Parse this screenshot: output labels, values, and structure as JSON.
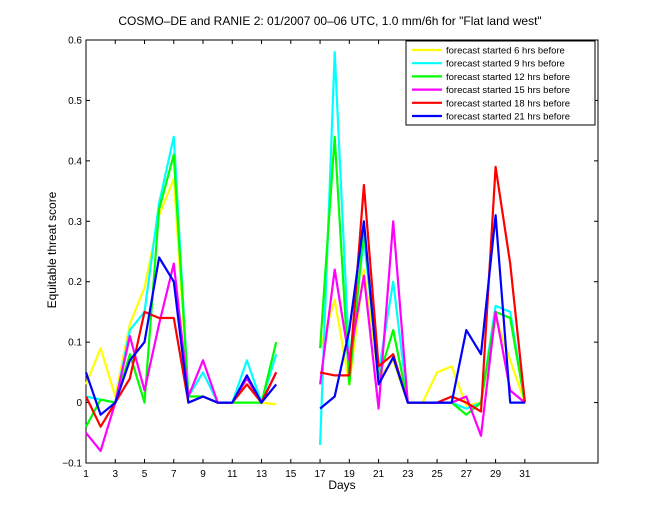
{
  "chart_data": {
    "type": "line",
    "title": "COSMO–DE and RANIE 2: 01/2007 00–06 UTC, 1.0 mm/6h for \"Flat land west\"",
    "xlabel": "Days",
    "ylabel": "Equitable threat score",
    "xlim": [
      1,
      36
    ],
    "ylim": [
      -0.1,
      0.6
    ],
    "xticks": [
      1,
      3,
      5,
      7,
      9,
      11,
      13,
      15,
      17,
      19,
      21,
      23,
      25,
      27,
      29,
      31
    ],
    "yticks": [
      -0.1,
      0,
      0.1,
      0.2,
      0.3,
      0.4,
      0.5,
      0.6
    ],
    "xtick_labels": [
      "1",
      "3",
      "5",
      "7",
      "9",
      "11",
      "13",
      "15",
      "17",
      "19",
      "21",
      "23",
      "25",
      "27",
      "29",
      "31"
    ],
    "ytick_labels": [
      "−0.1",
      "0",
      "0.1",
      "0.2",
      "0.3",
      "0.4",
      "0.5",
      "0.6"
    ],
    "legend_position": "top-right",
    "series": [
      {
        "name": "forecast started 6 hrs before",
        "color": "#ffff00",
        "x": [
          1,
          2,
          3,
          4,
          5,
          6,
          7,
          8,
          9,
          10,
          11,
          12,
          13,
          14,
          null,
          17,
          18,
          19,
          20,
          21,
          22,
          23,
          24,
          25,
          26,
          27,
          28,
          29,
          30,
          31
        ],
        "y": [
          0.03,
          0.09,
          0.01,
          0.13,
          0.19,
          0.31,
          0.37,
          0.01,
          0.01,
          0.0,
          0.0,
          0.03,
          0.0,
          -0.003,
          null,
          0.09,
          0.17,
          0.03,
          0.22,
          0.04,
          0.07,
          0.0,
          0.0,
          0.05,
          0.06,
          -0.005,
          0.0,
          0.14,
          0.07,
          0.0
        ]
      },
      {
        "name": "forecast started 9 hrs before",
        "color": "#00ffff",
        "x": [
          1,
          2,
          3,
          4,
          5,
          6,
          7,
          8,
          9,
          10,
          11,
          12,
          13,
          14,
          null,
          17,
          18,
          19,
          20,
          21,
          22,
          23,
          24,
          25,
          26,
          27,
          28,
          29,
          30,
          31
        ],
        "y": [
          0.01,
          0.005,
          0.0,
          0.12,
          0.15,
          0.33,
          0.44,
          0.01,
          0.05,
          0.0,
          0.0,
          0.07,
          0.0,
          0.08,
          null,
          -0.07,
          0.58,
          0.07,
          0.27,
          0.05,
          0.2,
          0.0,
          0.0,
          0.0,
          0.0,
          -0.01,
          0.0,
          0.16,
          0.15,
          0.0
        ]
      },
      {
        "name": "forecast started 12 hrs before",
        "color": "#00ff00",
        "x": [
          1,
          2,
          3,
          4,
          5,
          6,
          7,
          8,
          9,
          10,
          11,
          12,
          13,
          14,
          null,
          17,
          18,
          19,
          20,
          21,
          22,
          23,
          24,
          25,
          26,
          27,
          28,
          29,
          30,
          31
        ],
        "y": [
          -0.04,
          0.005,
          0.0,
          0.08,
          0.0,
          0.32,
          0.41,
          0.01,
          0.01,
          0.0,
          0.0,
          0.0,
          0.0,
          0.1,
          null,
          0.09,
          0.44,
          0.03,
          0.29,
          0.04,
          0.12,
          0.0,
          0.0,
          0.0,
          0.0,
          -0.02,
          0.0,
          0.15,
          0.14,
          0.0
        ]
      },
      {
        "name": "forecast started 15 hrs before",
        "color": "#ff00ff",
        "x": [
          1,
          2,
          3,
          4,
          5,
          6,
          7,
          8,
          9,
          10,
          11,
          12,
          13,
          14,
          null,
          17,
          18,
          19,
          20,
          21,
          22,
          23,
          24,
          25,
          26,
          27,
          28,
          29,
          30,
          31
        ],
        "y": [
          -0.05,
          -0.08,
          0.0,
          0.11,
          0.02,
          0.13,
          0.23,
          0.01,
          0.07,
          0.0,
          0.0,
          0.04,
          0.0,
          0.05,
          null,
          0.03,
          0.22,
          0.07,
          0.21,
          -0.01,
          0.3,
          0.0,
          0.0,
          0.0,
          0.0,
          0.01,
          -0.055,
          0.15,
          0.02,
          0.0
        ]
      },
      {
        "name": "forecast started 18 hrs before",
        "color": "#ff0000",
        "x": [
          1,
          2,
          3,
          4,
          5,
          6,
          7,
          8,
          9,
          10,
          11,
          12,
          13,
          14,
          null,
          17,
          18,
          19,
          20,
          21,
          22,
          23,
          24,
          25,
          26,
          27,
          28,
          29,
          30,
          31
        ],
        "y": [
          0.01,
          -0.04,
          0.0,
          0.04,
          0.15,
          0.14,
          0.14,
          0.0,
          0.01,
          0.0,
          0.0,
          0.03,
          0.0,
          0.05,
          null,
          0.05,
          0.045,
          0.045,
          0.36,
          0.06,
          0.08,
          0.0,
          0.0,
          0.0,
          0.01,
          0.0,
          -0.015,
          0.39,
          0.23,
          0.0
        ]
      },
      {
        "name": "forecast started 21 hrs before",
        "color": "#0000ff",
        "x": [
          1,
          2,
          3,
          4,
          5,
          6,
          7,
          8,
          9,
          10,
          11,
          12,
          13,
          14,
          null,
          17,
          18,
          19,
          20,
          21,
          22,
          23,
          24,
          25,
          26,
          27,
          28,
          29,
          30,
          31
        ],
        "y": [
          0.05,
          -0.02,
          0.0,
          0.07,
          0.1,
          0.24,
          0.2,
          0.0,
          0.01,
          0.0,
          0.0,
          0.045,
          0.0,
          0.03,
          null,
          -0.01,
          0.01,
          0.12,
          0.3,
          0.03,
          0.075,
          0.0,
          0.0,
          0.0,
          0.0,
          0.12,
          0.08,
          0.31,
          0.0,
          0.0
        ]
      }
    ]
  }
}
